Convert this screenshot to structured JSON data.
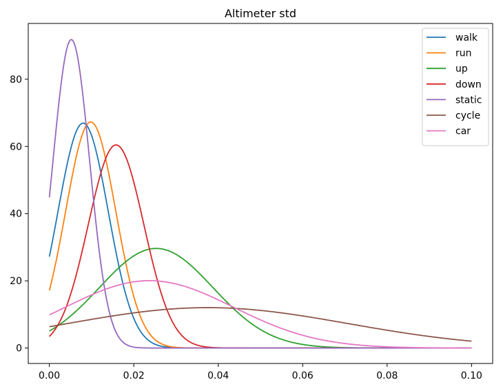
{
  "chart_data": {
    "type": "line",
    "title": "Altimeter std",
    "xlabel": "",
    "ylabel": "",
    "xlim": [
      -0.005,
      0.105
    ],
    "ylim": [
      -4.6,
      96.6
    ],
    "xticks": [
      0.0,
      0.02,
      0.04,
      0.06,
      0.08,
      0.1
    ],
    "xtick_labels": [
      "0.00",
      "0.02",
      "0.04",
      "0.06",
      "0.08",
      "0.10"
    ],
    "yticks": [
      0,
      20,
      40,
      60,
      80
    ],
    "ytick_labels": [
      "0",
      "20",
      "40",
      "60",
      "80"
    ],
    "grid": false,
    "legend_position": "top-right",
    "x_range": [
      0.0,
      0.1
    ],
    "series": [
      {
        "name": "walk",
        "color": "#1f77b4",
        "distribution": "normal",
        "mean": 0.008,
        "std": 0.00596
      },
      {
        "name": "run",
        "color": "#ff7f0e",
        "distribution": "normal",
        "mean": 0.0098,
        "std": 0.00593
      },
      {
        "name": "up",
        "color": "#2ca02c",
        "distribution": "normal",
        "mean": 0.0253,
        "std": 0.01346
      },
      {
        "name": "down",
        "color": "#d62728",
        "distribution": "normal",
        "mean": 0.0158,
        "std": 0.0066
      },
      {
        "name": "static",
        "color": "#9467bd",
        "distribution": "normal",
        "mean": 0.0052,
        "std": 0.004345
      },
      {
        "name": "cycle",
        "color": "#8c564b",
        "distribution": "normal",
        "mean": 0.0375,
        "std": 0.0332
      },
      {
        "name": "car",
        "color": "#e377c2",
        "distribution": "normal",
        "mean": 0.0237,
        "std": 0.0199
      }
    ]
  }
}
